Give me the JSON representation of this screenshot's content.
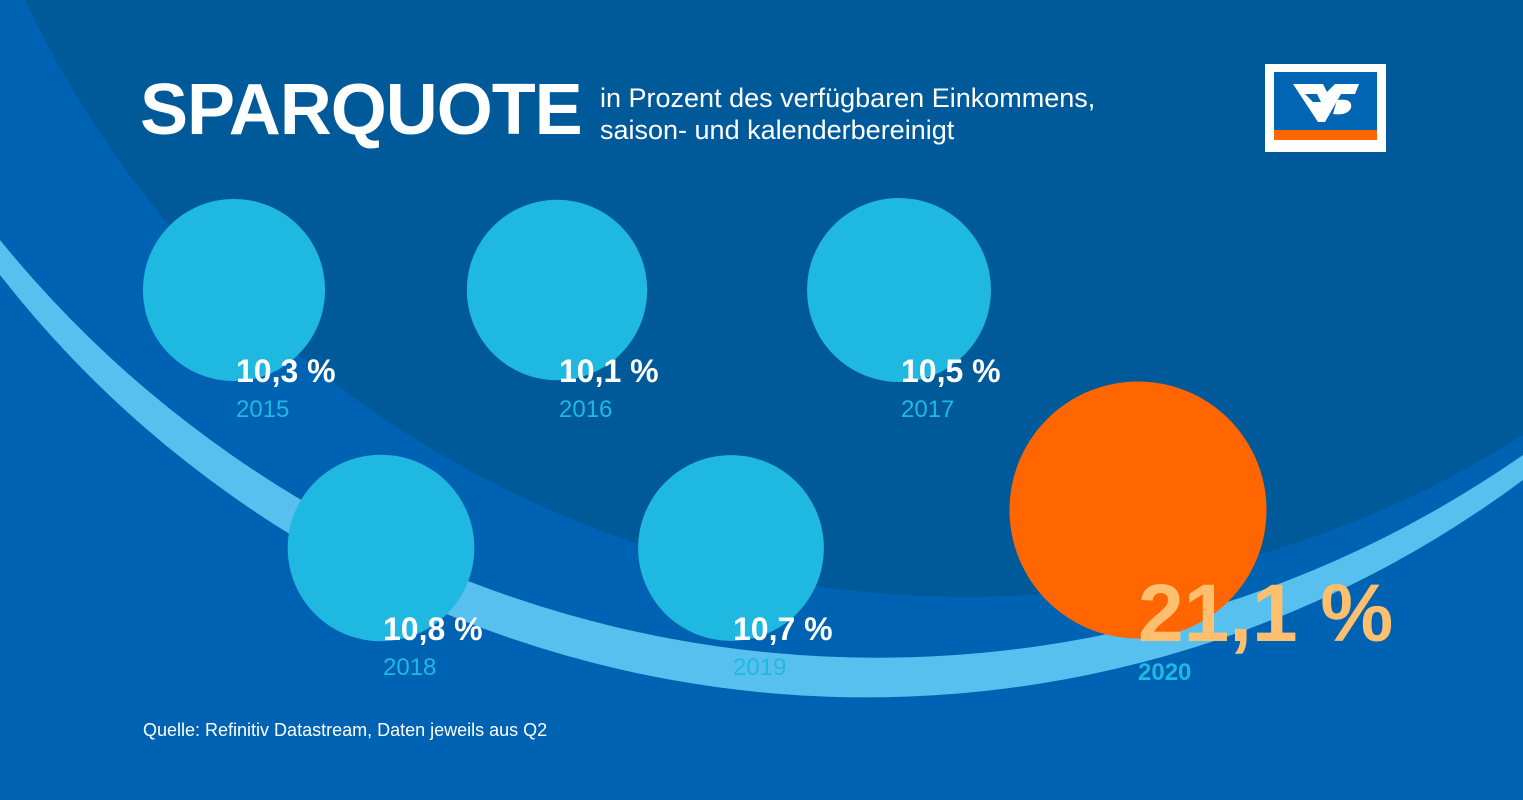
{
  "header": {
    "title": "SPARQUOTE",
    "subtitle_line1": "in Prozent des verfügbaren Einkommens,",
    "subtitle_line2": "saison- und kalenderbereinigt"
  },
  "footer": {
    "source": "Quelle: Refinitiv Datastream, Daten jeweils aus Q2"
  },
  "logo": {
    "icon": "volksbank-logo"
  },
  "colors": {
    "background": "#0062b3",
    "arc_dark": "#005a99",
    "arc_light": "#58c0ee",
    "bubble": "#1eb8e0",
    "highlight": "#ff6600",
    "highlight_text": "#ffbf6e",
    "year_text": "#1eb8e0",
    "value_text": "#ffffff",
    "logo_blue": "#0066b3",
    "logo_orange": "#ff6600"
  },
  "chart_data": {
    "type": "bubble",
    "title": "SPARQUOTE",
    "subtitle": "in Prozent des verfügbaren Einkommens, saison- und kalenderbereinigt",
    "unit": "%",
    "points": [
      {
        "year": "2015",
        "value": 10.3,
        "label": "10,3 %",
        "highlight": false
      },
      {
        "year": "2016",
        "value": 10.1,
        "label": "10,1 %",
        "highlight": false
      },
      {
        "year": "2017",
        "value": 10.5,
        "label": "10,5 %",
        "highlight": false
      },
      {
        "year": "2018",
        "value": 10.8,
        "label": "10,8 %",
        "highlight": false
      },
      {
        "year": "2019",
        "value": 10.7,
        "label": "10,7 %",
        "highlight": false
      },
      {
        "year": "2020",
        "value": 21.1,
        "label": "21,1 %",
        "highlight": true
      }
    ]
  }
}
